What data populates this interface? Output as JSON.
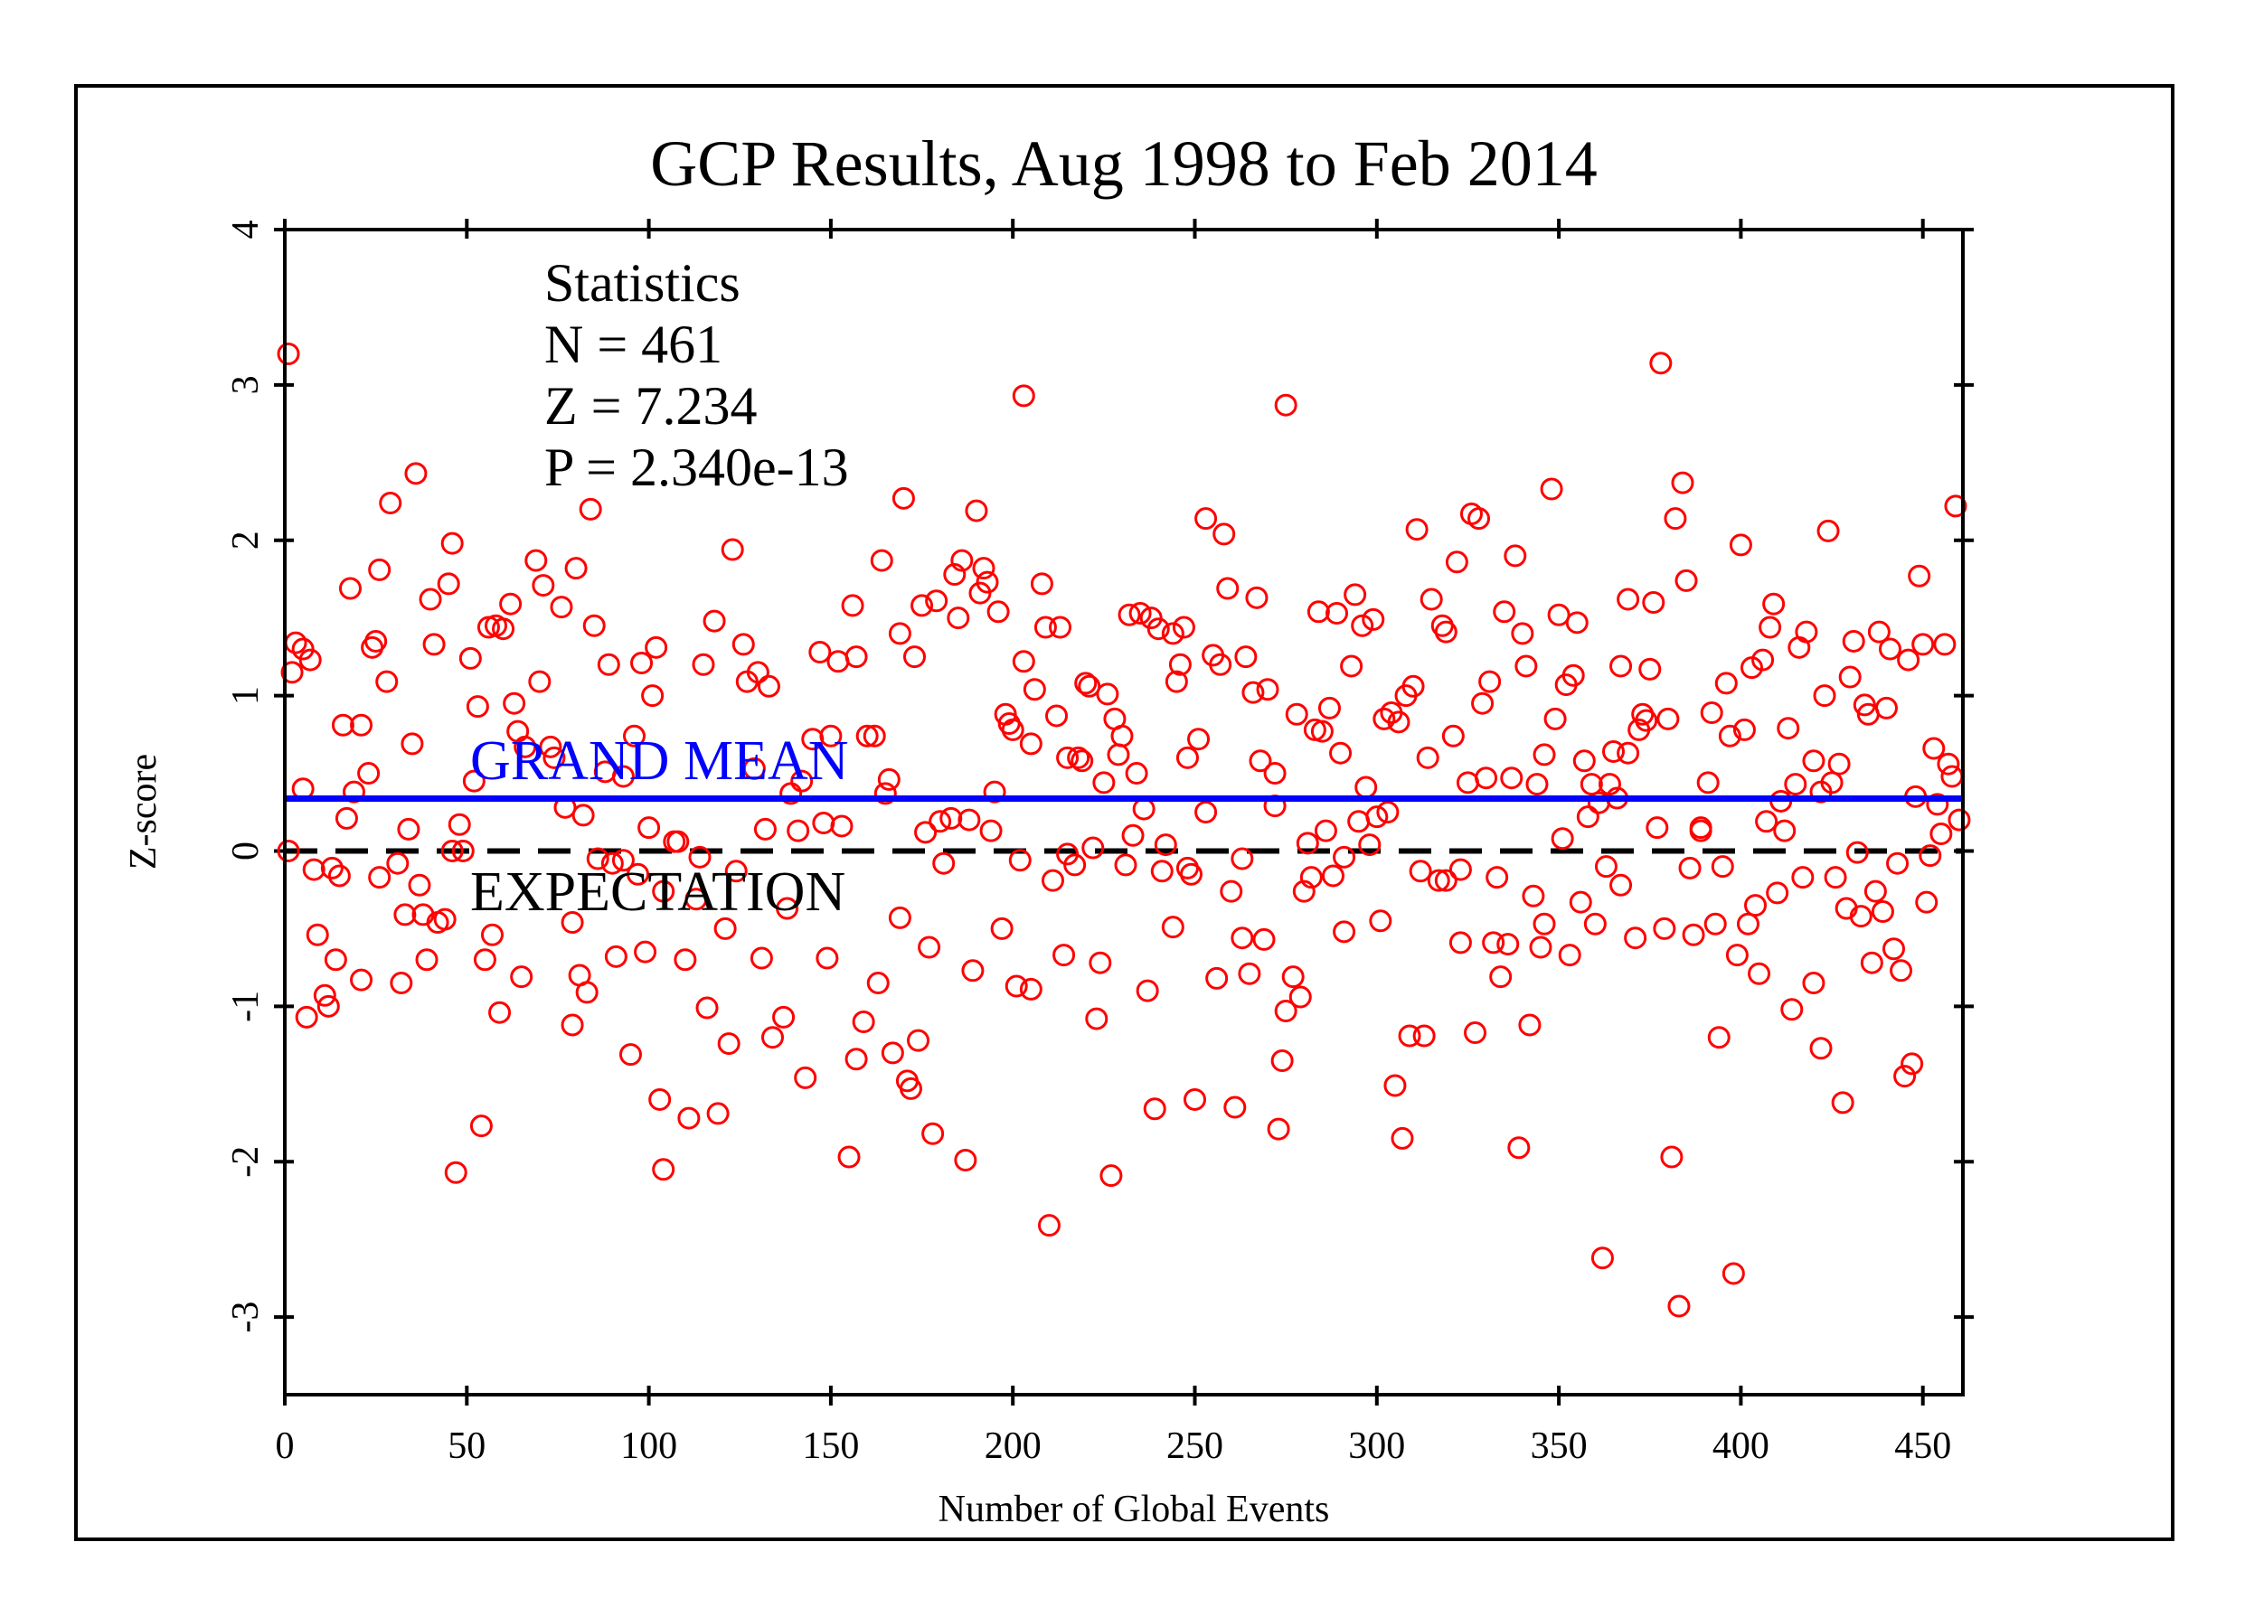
{
  "chart_data": {
    "type": "scatter",
    "title": "GCP Results, Aug 1998 to Feb 2014",
    "xlabel": "Number of Global Events",
    "ylabel": "Z-score",
    "xlim": [
      0,
      461
    ],
    "ylim": [
      -3.5,
      4
    ],
    "xticks": [
      0,
      50,
      100,
      150,
      200,
      250,
      300,
      350,
      400,
      450
    ],
    "yticks": [
      -3,
      -2,
      -1,
      0,
      1,
      2,
      3,
      4
    ],
    "grid": false,
    "statistics": {
      "heading": "Statistics",
      "n": "N = 461",
      "z": "Z = 7.234",
      "p": "P = 2.340e-13"
    },
    "grand_mean": {
      "label": "GRAND MEAN",
      "value": 0.337,
      "color": "#0000ff"
    },
    "expectation": {
      "label": "EXPECTATION",
      "value": 0,
      "color": "#000000"
    },
    "marker_color": "#ff0000",
    "points": [
      [
        1,
        3.2
      ],
      [
        1,
        0
      ],
      [
        2,
        1.15
      ],
      [
        3,
        1.34
      ],
      [
        5,
        1.3
      ],
      [
        5,
        0.4
      ],
      [
        6,
        -1.07
      ],
      [
        7,
        1.23
      ],
      [
        8,
        -0.12
      ],
      [
        9,
        -0.54
      ],
      [
        11,
        -0.93
      ],
      [
        12,
        -1.0
      ],
      [
        13,
        -0.11
      ],
      [
        14,
        -0.7
      ],
      [
        15,
        -0.16
      ],
      [
        16,
        0.81
      ],
      [
        17,
        0.21
      ],
      [
        18,
        1.69
      ],
      [
        19,
        0.38
      ],
      [
        21,
        0.81
      ],
      [
        21,
        -0.83
      ],
      [
        23,
        0.5
      ],
      [
        24,
        1.31
      ],
      [
        25,
        1.35
      ],
      [
        26,
        1.81
      ],
      [
        26,
        -0.17
      ],
      [
        28,
        1.09
      ],
      [
        29,
        2.24
      ],
      [
        31,
        -0.08
      ],
      [
        32,
        -0.85
      ],
      [
        33,
        -0.41
      ],
      [
        34,
        0.14
      ],
      [
        35,
        0.69
      ],
      [
        36,
        2.43
      ],
      [
        37,
        -0.22
      ],
      [
        38,
        -0.41
      ],
      [
        39,
        -0.7
      ],
      [
        40,
        1.62
      ],
      [
        41,
        1.33
      ],
      [
        42,
        -0.46
      ],
      [
        44,
        -0.44
      ],
      [
        45,
        1.72
      ],
      [
        46,
        1.98
      ],
      [
        46,
        0
      ],
      [
        47,
        -2.07
      ],
      [
        48,
        0.17
      ],
      [
        49,
        0
      ],
      [
        51,
        1.24
      ],
      [
        52,
        0.45
      ],
      [
        53,
        0.93
      ],
      [
        54,
        -1.77
      ],
      [
        55,
        -0.7
      ],
      [
        56,
        1.44
      ],
      [
        57,
        -0.54
      ],
      [
        58,
        1.45
      ],
      [
        59,
        -1.04
      ],
      [
        60,
        1.43
      ],
      [
        62,
        1.59
      ],
      [
        63,
        0.95
      ],
      [
        64,
        0.77
      ],
      [
        65,
        -0.81
      ],
      [
        66,
        0.67
      ],
      [
        69,
        1.87
      ],
      [
        70,
        1.09
      ],
      [
        71,
        1.71
      ],
      [
        73,
        0.67
      ],
      [
        74,
        0.6
      ],
      [
        76,
        1.57
      ],
      [
        77,
        0.28
      ],
      [
        79,
        -0.46
      ],
      [
        79,
        -1.12
      ],
      [
        80,
        1.82
      ],
      [
        81,
        -0.8
      ],
      [
        82,
        0.23
      ],
      [
        83,
        -0.91
      ],
      [
        84,
        2.2
      ],
      [
        85,
        1.45
      ],
      [
        86,
        -0.05
      ],
      [
        88,
        0.51
      ],
      [
        89,
        1.2
      ],
      [
        90,
        -0.08
      ],
      [
        91,
        -0.68
      ],
      [
        93,
        0.48
      ],
      [
        93,
        -0.06
      ],
      [
        95,
        -1.31
      ],
      [
        96,
        0.74
      ],
      [
        97,
        -0.15
      ],
      [
        98,
        1.21
      ],
      [
        99,
        -0.65
      ],
      [
        100,
        0.15
      ],
      [
        101,
        1.0
      ],
      [
        102,
        1.31
      ],
      [
        103,
        -1.6
      ],
      [
        104,
        -2.05
      ],
      [
        104,
        -0.26
      ],
      [
        107,
        0.06
      ],
      [
        108,
        0.06
      ],
      [
        110,
        -0.7
      ],
      [
        111,
        -1.72
      ],
      [
        113,
        -0.31
      ],
      [
        114,
        -0.04
      ],
      [
        115,
        1.2
      ],
      [
        116,
        -1.01
      ],
      [
        118,
        1.48
      ],
      [
        119,
        -1.69
      ],
      [
        121,
        -0.5
      ],
      [
        122,
        -1.24
      ],
      [
        123,
        1.94
      ],
      [
        124,
        -0.13
      ],
      [
        126,
        1.33
      ],
      [
        127,
        1.09
      ],
      [
        129,
        0.53
      ],
      [
        130,
        1.15
      ],
      [
        131,
        -0.69
      ],
      [
        132,
        0.14
      ],
      [
        133,
        1.06
      ],
      [
        134,
        -1.2
      ],
      [
        137,
        -1.07
      ],
      [
        138,
        -0.37
      ],
      [
        139,
        0.37
      ],
      [
        141,
        0.13
      ],
      [
        142,
        0.45
      ],
      [
        143,
        -1.46
      ],
      [
        145,
        0.72
      ],
      [
        147,
        1.28
      ],
      [
        148,
        0.18
      ],
      [
        149,
        -0.69
      ],
      [
        150,
        0.74
      ],
      [
        152,
        1.22
      ],
      [
        153,
        0.16
      ],
      [
        155,
        -1.97
      ],
      [
        156,
        1.58
      ],
      [
        157,
        -1.34
      ],
      [
        157,
        1.25
      ],
      [
        159,
        -1.1
      ],
      [
        160,
        0.74
      ],
      [
        162,
        0.74
      ],
      [
        163,
        -0.85
      ],
      [
        164,
        1.87
      ],
      [
        165,
        0.37
      ],
      [
        166,
        0.46
      ],
      [
        167,
        -1.3
      ],
      [
        169,
        1.4
      ],
      [
        169,
        -0.43
      ],
      [
        170,
        2.27
      ],
      [
        171,
        -1.48
      ],
      [
        172,
        -1.53
      ],
      [
        173,
        1.25
      ],
      [
        174,
        -1.22
      ],
      [
        175,
        1.58
      ],
      [
        176,
        0.12
      ],
      [
        177,
        -0.62
      ],
      [
        178,
        -1.82
      ],
      [
        179,
        1.61
      ],
      [
        180,
        0.19
      ],
      [
        181,
        -0.08
      ],
      [
        183,
        0.21
      ],
      [
        184,
        1.78
      ],
      [
        185,
        1.5
      ],
      [
        186,
        1.87
      ],
      [
        187,
        -1.99
      ],
      [
        188,
        0.2
      ],
      [
        189,
        -0.77
      ],
      [
        190,
        2.19
      ],
      [
        191,
        1.66
      ],
      [
        192,
        1.82
      ],
      [
        193,
        1.73
      ],
      [
        194,
        0.13
      ],
      [
        195,
        0.38
      ],
      [
        196,
        1.54
      ],
      [
        197,
        -0.5
      ],
      [
        198,
        0.88
      ],
      [
        199,
        0.82
      ],
      [
        200,
        0.78
      ],
      [
        201,
        -0.87
      ],
      [
        202,
        -0.06
      ],
      [
        203,
        1.22
      ],
      [
        203,
        2.93
      ],
      [
        205,
        -0.89
      ],
      [
        205,
        0.69
      ],
      [
        206,
        1.04
      ],
      [
        208,
        1.72
      ],
      [
        209,
        1.44
      ],
      [
        210,
        -2.41
      ],
      [
        211,
        -0.19
      ],
      [
        212,
        0.87
      ],
      [
        213,
        1.44
      ],
      [
        214,
        -0.67
      ],
      [
        215,
        -0.02
      ],
      [
        215,
        0.6
      ],
      [
        217,
        -0.09
      ],
      [
        218,
        0.6
      ],
      [
        219,
        0.58
      ],
      [
        220,
        1.08
      ],
      [
        221,
        1.06
      ],
      [
        222,
        0.02
      ],
      [
        223,
        -1.08
      ],
      [
        224,
        -0.72
      ],
      [
        225,
        0.44
      ],
      [
        226,
        1.01
      ],
      [
        227,
        -2.09
      ],
      [
        228,
        0.85
      ],
      [
        229,
        0.62
      ],
      [
        230,
        0.74
      ],
      [
        231,
        -0.09
      ],
      [
        232,
        1.52
      ],
      [
        233,
        0.1
      ],
      [
        234,
        0.5
      ],
      [
        235,
        1.53
      ],
      [
        236,
        0.27
      ],
      [
        237,
        -0.9
      ],
      [
        238,
        1.5
      ],
      [
        239,
        -1.66
      ],
      [
        240,
        1.43
      ],
      [
        241,
        -0.13
      ],
      [
        242,
        0.04
      ],
      [
        244,
        1.4
      ],
      [
        244,
        -0.49
      ],
      [
        245,
        1.09
      ],
      [
        246,
        1.2
      ],
      [
        247,
        1.44
      ],
      [
        248,
        -0.11
      ],
      [
        248,
        0.6
      ],
      [
        249,
        -0.15
      ],
      [
        250,
        -1.6
      ],
      [
        251,
        0.72
      ],
      [
        253,
        2.14
      ],
      [
        253,
        0.25
      ],
      [
        255,
        1.26
      ],
      [
        256,
        -0.82
      ],
      [
        257,
        1.2
      ],
      [
        258,
        2.04
      ],
      [
        259,
        1.69
      ],
      [
        260,
        -0.26
      ],
      [
        261,
        -1.65
      ],
      [
        263,
        -0.56
      ],
      [
        263,
        -0.05
      ],
      [
        264,
        1.25
      ],
      [
        265,
        -0.79
      ],
      [
        266,
        1.02
      ],
      [
        267,
        1.63
      ],
      [
        268,
        0.58
      ],
      [
        269,
        -0.57
      ],
      [
        270,
        1.04
      ],
      [
        272,
        0.5
      ],
      [
        272,
        0.29
      ],
      [
        273,
        -1.79
      ],
      [
        274,
        -1.35
      ],
      [
        275,
        -1.03
      ],
      [
        275,
        2.87
      ],
      [
        277,
        -0.81
      ],
      [
        278,
        0.88
      ],
      [
        279,
        -0.94
      ],
      [
        280,
        -0.26
      ],
      [
        281,
        0.05
      ],
      [
        282,
        -0.17
      ],
      [
        283,
        0.78
      ],
      [
        284,
        1.54
      ],
      [
        285,
        0.77
      ],
      [
        286,
        0.13
      ],
      [
        287,
        0.92
      ],
      [
        288,
        -0.16
      ],
      [
        289,
        1.53
      ],
      [
        290,
        0.63
      ],
      [
        291,
        -0.52
      ],
      [
        291,
        -0.04
      ],
      [
        293,
        1.19
      ],
      [
        294,
        1.65
      ],
      [
        295,
        0.19
      ],
      [
        296,
        1.45
      ],
      [
        297,
        0.41
      ],
      [
        298,
        0.04
      ],
      [
        299,
        1.49
      ],
      [
        300,
        0.22
      ],
      [
        301,
        -0.45
      ],
      [
        302,
        0.85
      ],
      [
        303,
        0.25
      ],
      [
        304,
        0.89
      ],
      [
        305,
        -1.51
      ],
      [
        306,
        0.83
      ],
      [
        307,
        -1.85
      ],
      [
        308,
        1.0
      ],
      [
        309,
        -1.19
      ],
      [
        310,
        1.06
      ],
      [
        311,
        2.07
      ],
      [
        312,
        -0.13
      ],
      [
        313,
        -1.19
      ],
      [
        314,
        0.6
      ],
      [
        315,
        1.62
      ],
      [
        317,
        -0.19
      ],
      [
        318,
        1.45
      ],
      [
        319,
        -0.19
      ],
      [
        319,
        1.41
      ],
      [
        321,
        0.74
      ],
      [
        322,
        1.86
      ],
      [
        323,
        -0.59
      ],
      [
        323,
        -0.12
      ],
      [
        325,
        0.44
      ],
      [
        326,
        2.17
      ],
      [
        327,
        -1.17
      ],
      [
        328,
        2.14
      ],
      [
        329,
        0.95
      ],
      [
        330,
        0.47
      ],
      [
        331,
        1.09
      ],
      [
        332,
        -0.59
      ],
      [
        333,
        -0.17
      ],
      [
        334,
        -0.81
      ],
      [
        335,
        1.54
      ],
      [
        336,
        -0.6
      ],
      [
        337,
        0.47
      ],
      [
        338,
        1.9
      ],
      [
        339,
        -1.91
      ],
      [
        340,
        1.4
      ],
      [
        341,
        1.19
      ],
      [
        342,
        -1.12
      ],
      [
        343,
        -0.29
      ],
      [
        344,
        0.43
      ],
      [
        345,
        -0.62
      ],
      [
        346,
        0.62
      ],
      [
        346,
        -0.47
      ],
      [
        348,
        2.33
      ],
      [
        349,
        0.85
      ],
      [
        350,
        1.52
      ],
      [
        351,
        0.08
      ],
      [
        352,
        1.07
      ],
      [
        353,
        -0.67
      ],
      [
        354,
        1.13
      ],
      [
        355,
        1.47
      ],
      [
        356,
        -0.33
      ],
      [
        357,
        0.58
      ],
      [
        358,
        0.22
      ],
      [
        359,
        0.43
      ],
      [
        360,
        -0.47
      ],
      [
        361,
        0.31
      ],
      [
        362,
        -2.62
      ],
      [
        363,
        -0.1
      ],
      [
        364,
        0.43
      ],
      [
        365,
        0.64
      ],
      [
        366,
        0.34
      ],
      [
        367,
        1.19
      ],
      [
        367,
        -0.22
      ],
      [
        369,
        1.62
      ],
      [
        369,
        0.63
      ],
      [
        371,
        -0.56
      ],
      [
        372,
        0.78
      ],
      [
        373,
        0.88
      ],
      [
        374,
        0.84
      ],
      [
        375,
        1.17
      ],
      [
        376,
        1.6
      ],
      [
        377,
        0.15
      ],
      [
        378,
        3.14
      ],
      [
        379,
        -0.5
      ],
      [
        380,
        0.85
      ],
      [
        381,
        -1.97
      ],
      [
        382,
        2.14
      ],
      [
        383,
        -2.93
      ],
      [
        384,
        2.37
      ],
      [
        385,
        1.74
      ],
      [
        386,
        -0.11
      ],
      [
        387,
        -0.54
      ],
      [
        389,
        0.13
      ],
      [
        389,
        0.15
      ],
      [
        391,
        0.44
      ],
      [
        392,
        0.89
      ],
      [
        393,
        -0.47
      ],
      [
        394,
        -1.2
      ],
      [
        395,
        -0.1
      ],
      [
        396,
        1.08
      ],
      [
        397,
        0.74
      ],
      [
        398,
        -2.72
      ],
      [
        399,
        -0.67
      ],
      [
        400,
        1.97
      ],
      [
        401,
        0.78
      ],
      [
        402,
        -0.47
      ],
      [
        403,
        1.18
      ],
      [
        404,
        -0.35
      ],
      [
        405,
        -0.79
      ],
      [
        406,
        1.23
      ],
      [
        407,
        0.19
      ],
      [
        408,
        1.44
      ],
      [
        409,
        1.59
      ],
      [
        410,
        -0.27
      ],
      [
        411,
        0.32
      ],
      [
        412,
        0.13
      ],
      [
        413,
        0.79
      ],
      [
        414,
        -1.02
      ],
      [
        415,
        0.43
      ],
      [
        416,
        1.31
      ],
      [
        417,
        -0.17
      ],
      [
        418,
        1.41
      ],
      [
        420,
        -0.85
      ],
      [
        420,
        0.58
      ],
      [
        422,
        -1.27
      ],
      [
        422,
        0.38
      ],
      [
        423,
        1.0
      ],
      [
        424,
        2.06
      ],
      [
        425,
        0.44
      ],
      [
        426,
        -0.17
      ],
      [
        427,
        0.56
      ],
      [
        428,
        -1.62
      ],
      [
        429,
        -0.37
      ],
      [
        430,
        1.12
      ],
      [
        431,
        1.35
      ],
      [
        432,
        -0.01
      ],
      [
        433,
        -0.42
      ],
      [
        434,
        0.94
      ],
      [
        435,
        0.88
      ],
      [
        436,
        -0.72
      ],
      [
        437,
        -0.26
      ],
      [
        438,
        1.41
      ],
      [
        439,
        -0.39
      ],
      [
        440,
        0.92
      ],
      [
        441,
        1.3
      ],
      [
        442,
        -0.63
      ],
      [
        443,
        -0.08
      ],
      [
        444,
        -0.77
      ],
      [
        445,
        -1.45
      ],
      [
        446,
        1.23
      ],
      [
        447,
        -1.37
      ],
      [
        448,
        0.35
      ],
      [
        449,
        1.77
      ],
      [
        450,
        1.33
      ],
      [
        451,
        -0.33
      ],
      [
        452,
        -0.03
      ],
      [
        453,
        0.66
      ],
      [
        454,
        0.3
      ],
      [
        455,
        0.11
      ],
      [
        456,
        1.33
      ],
      [
        457,
        0.56
      ],
      [
        458,
        0.48
      ],
      [
        459,
        2.22
      ],
      [
        460,
        0.2
      ]
    ]
  }
}
